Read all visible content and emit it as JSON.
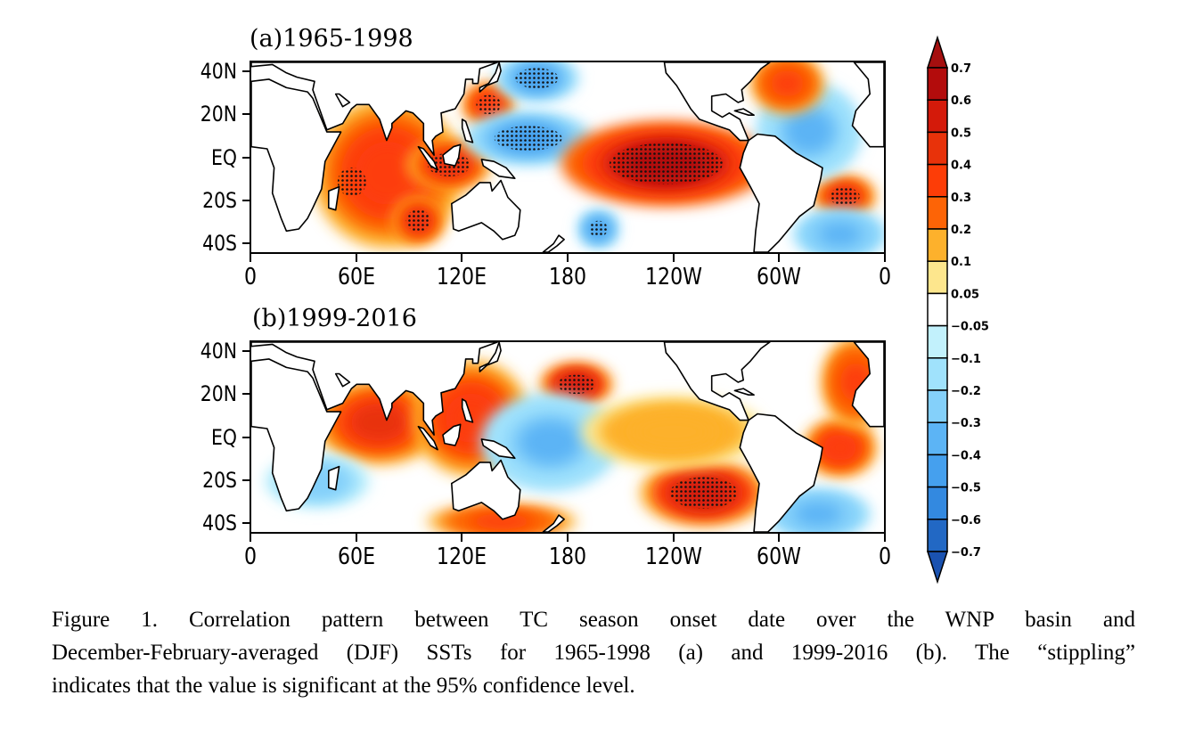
{
  "chart_data": [
    {
      "type": "heatmap",
      "panel": "a",
      "title": "(a)1965-1998",
      "xlabel": "",
      "ylabel": "",
      "x_tick_labels": [
        "0",
        "60E",
        "120E",
        "180",
        "120W",
        "60W",
        "0"
      ],
      "x_ticks_lon": [
        0,
        60,
        120,
        180,
        240,
        300,
        360
      ],
      "y_tick_labels": [
        "40N",
        "20N",
        "EQ",
        "20S",
        "40S"
      ],
      "y_ticks_lat": [
        40,
        20,
        0,
        -20,
        -40
      ],
      "xlim_lon": [
        0,
        360
      ],
      "ylim_lat": [
        -45,
        45
      ],
      "field": "correlation between TC season onset date (WNP) and DJF SST",
      "features": [
        {
          "region": "Tropical Indian Ocean",
          "lon": [
            45,
            110
          ],
          "lat": [
            -35,
            20
          ],
          "value": 0.4,
          "stippled_part": true
        },
        {
          "region": "Maritime Continent",
          "lon": [
            95,
            130
          ],
          "lat": [
            -12,
            5
          ],
          "value": 0.45,
          "stippled": true
        },
        {
          "region": "SE Indian Ocean",
          "lon": [
            85,
            105
          ],
          "lat": [
            -38,
            -22
          ],
          "value": 0.45,
          "stippled": true
        },
        {
          "region": "Western North Pacific (south of Japan)",
          "lon": [
            125,
            145
          ],
          "lat": [
            18,
            32
          ],
          "value": 0.4,
          "stippled": true
        },
        {
          "region": "Western Pacific warm pool",
          "lon": [
            130,
            185
          ],
          "lat": [
            0,
            18
          ],
          "value": -0.45,
          "stippled": true
        },
        {
          "region": "North Pacific (near 40N)",
          "lon": [
            145,
            180
          ],
          "lat": [
            30,
            45
          ],
          "value": -0.4,
          "stippled": true
        },
        {
          "region": "Central-Eastern Equatorial Pacific",
          "lon": [
            190,
            282
          ],
          "lat": [
            -18,
            12
          ],
          "value": 0.65,
          "stippled": true
        },
        {
          "region": "South Pacific",
          "lon": [
            190,
            205
          ],
          "lat": [
            -40,
            -28
          ],
          "value": -0.4,
          "stippled": true
        },
        {
          "region": "South Atlantic",
          "lon": [
            325,
            350
          ],
          "lat": [
            -25,
            -12
          ],
          "value": 0.45,
          "stippled": true
        },
        {
          "region": "North Atlantic (subtropical)",
          "lon": [
            295,
            340
          ],
          "lat": [
            -5,
            30
          ],
          "value": -0.3,
          "stippled": false
        },
        {
          "region": "NW Atlantic",
          "lon": [
            290,
            320
          ],
          "lat": [
            25,
            45
          ],
          "value": 0.35,
          "stippled": false
        },
        {
          "region": "South Atlantic (south)",
          "lon": [
            315,
            355
          ],
          "lat": [
            -45,
            -28
          ],
          "value": -0.35,
          "stippled": false
        }
      ]
    },
    {
      "type": "heatmap",
      "panel": "b",
      "title": "(b)1999-2016",
      "xlabel": "",
      "ylabel": "",
      "x_tick_labels": [
        "0",
        "60E",
        "120E",
        "180",
        "120W",
        "60W",
        "0"
      ],
      "x_ticks_lon": [
        0,
        60,
        120,
        180,
        240,
        300,
        360
      ],
      "y_tick_labels": [
        "40N",
        "20N",
        "EQ",
        "20S",
        "40S"
      ],
      "y_ticks_lat": [
        40,
        20,
        0,
        -20,
        -40
      ],
      "xlim_lon": [
        0,
        360
      ],
      "ylim_lat": [
        -45,
        45
      ],
      "field": "correlation between TC season onset date (WNP) and DJF SST",
      "features": [
        {
          "region": "North Indian Ocean / Arabian Sea",
          "lon": [
            45,
            100
          ],
          "lat": [
            -8,
            22
          ],
          "value": 0.45,
          "stippled": false
        },
        {
          "region": "Maritime Continent / South China Sea",
          "lon": [
            100,
            150
          ],
          "lat": [
            -12,
            30
          ],
          "value": 0.4,
          "stippled": false
        },
        {
          "region": "Subtropical North Pacific (NW of Hawaii)",
          "lon": [
            170,
            200
          ],
          "lat": [
            18,
            32
          ],
          "value": 0.55,
          "stippled": true
        },
        {
          "region": "Western tropical Pacific",
          "lon": [
            140,
            200
          ],
          "lat": [
            -20,
            15
          ],
          "value": -0.3,
          "stippled": false
        },
        {
          "region": "Southeast Pacific",
          "lon": [
            230,
            285
          ],
          "lat": [
            -38,
            -15
          ],
          "value": 0.55,
          "stippled": true
        },
        {
          "region": "Eastern equatorial Pacific",
          "lon": [
            200,
            280
          ],
          "lat": [
            -10,
            15
          ],
          "value": 0.2,
          "stippled": false
        },
        {
          "region": "Tropical Atlantic (off Brazil)",
          "lon": [
            320,
            350
          ],
          "lat": [
            -15,
            5
          ],
          "value": 0.4,
          "stippled": false
        },
        {
          "region": "Eastern North Atlantic",
          "lon": [
            330,
            358
          ],
          "lat": [
            10,
            42
          ],
          "value": 0.35,
          "stippled": false
        },
        {
          "region": "South Atlantic",
          "lon": [
            300,
            345
          ],
          "lat": [
            -45,
            -28
          ],
          "value": -0.35,
          "stippled": false
        },
        {
          "region": "South Indian Ocean",
          "lon": [
            15,
            60
          ],
          "lat": [
            -30,
            -12
          ],
          "value": -0.25,
          "stippled": false
        },
        {
          "region": "Southern Ocean south of Australia",
          "lon": [
            110,
            175
          ],
          "lat": [
            -45,
            -35
          ],
          "value": 0.35,
          "stippled": false
        }
      ]
    }
  ],
  "colorbar": {
    "levels": [
      "0.7",
      "0.6",
      "0.5",
      "0.4",
      "0.3",
      "0.2",
      "0.1",
      "0.05",
      "−0.05",
      "−0.1",
      "−0.2",
      "−0.3",
      "−0.4",
      "−0.5",
      "−0.6",
      "−0.7"
    ],
    "bins": [
      {
        "range": ">0.7",
        "color": "#a50f0f"
      },
      {
        "range": "0.6 to 0.7",
        "color": "#b30c0c"
      },
      {
        "range": "0.5 to 0.6",
        "color": "#d41a0a"
      },
      {
        "range": "0.4 to 0.5",
        "color": "#e8320a"
      },
      {
        "range": "0.3 to 0.4",
        "color": "#fd3d07"
      },
      {
        "range": "0.2 to 0.3",
        "color": "#fd6406"
      },
      {
        "range": "0.1 to 0.2",
        "color": "#fdb12c"
      },
      {
        "range": "0.05 to 0.1",
        "color": "#fde68d"
      },
      {
        "range": "-0.05 to 0.05",
        "color": "#ffffff"
      },
      {
        "range": "-0.1 to -0.05",
        "color": "#c2f1fc"
      },
      {
        "range": "-0.2 to -0.1",
        "color": "#a0e2fc"
      },
      {
        "range": "-0.3 to -0.2",
        "color": "#84d0fa"
      },
      {
        "range": "-0.4 to -0.3",
        "color": "#5cb4f5"
      },
      {
        "range": "-0.5 to -0.4",
        "color": "#45a0ee"
      },
      {
        "range": "-0.6 to -0.5",
        "color": "#3389e0"
      },
      {
        "range": "-0.7 to -0.6",
        "color": "#2268c4"
      },
      {
        "range": "<-0.7",
        "color": "#1a52b0"
      }
    ]
  },
  "caption": {
    "lines": [
      "Figure 1. Correlation pattern between TC season onset date over the WNP basin and",
      "December-February-averaged (DJF) SSTs for 1965-1998 (a) and 1999-2016 (b). The “stippling”",
      "indicates that the value is significant at the 95% confidence level."
    ]
  }
}
